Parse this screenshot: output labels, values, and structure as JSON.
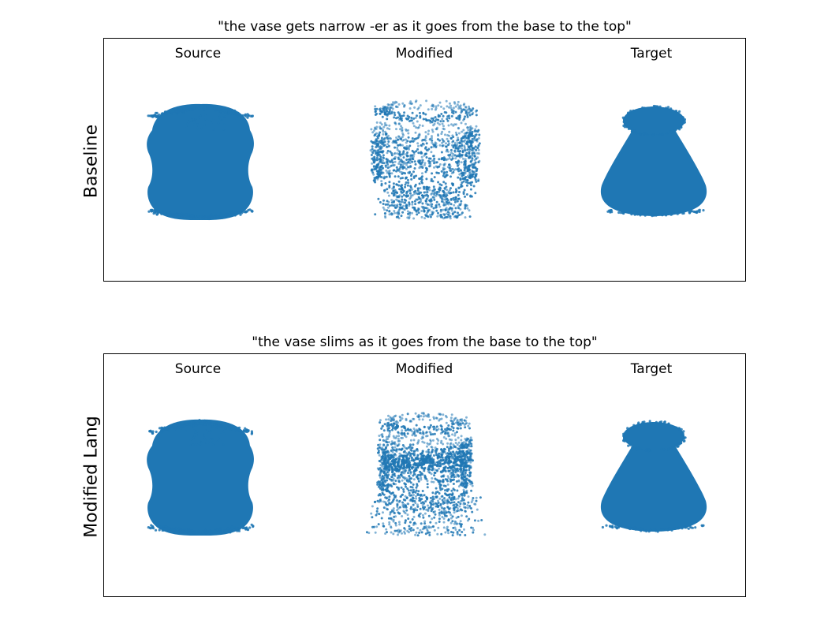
{
  "colors": {
    "points": "#1f77b4",
    "frame": "#000000",
    "background": "#ffffff"
  },
  "chart_data": [
    {
      "type": "scatter",
      "title": "\"the vase gets narrow -er as it goes from the base to the top\"",
      "row_label": "Baseline",
      "columns": [
        "Source",
        "Modified",
        "Target"
      ],
      "shapes": [
        "straight vase with bulges near top and base",
        "sparse cylindrical cloud",
        "cone widening toward the base"
      ],
      "grid": false,
      "legend": "none"
    },
    {
      "type": "scatter",
      "title": "\"the vase slims as it goes from the base to the top\"",
      "row_label": "Modified Lang",
      "columns": [
        "Source",
        "Modified",
        "Target"
      ],
      "shapes": [
        "straight vase with bulges near top and base",
        "sparse cylindrical cloud with wide spray at base",
        "cone widening toward the base"
      ],
      "grid": false,
      "legend": "none"
    }
  ]
}
